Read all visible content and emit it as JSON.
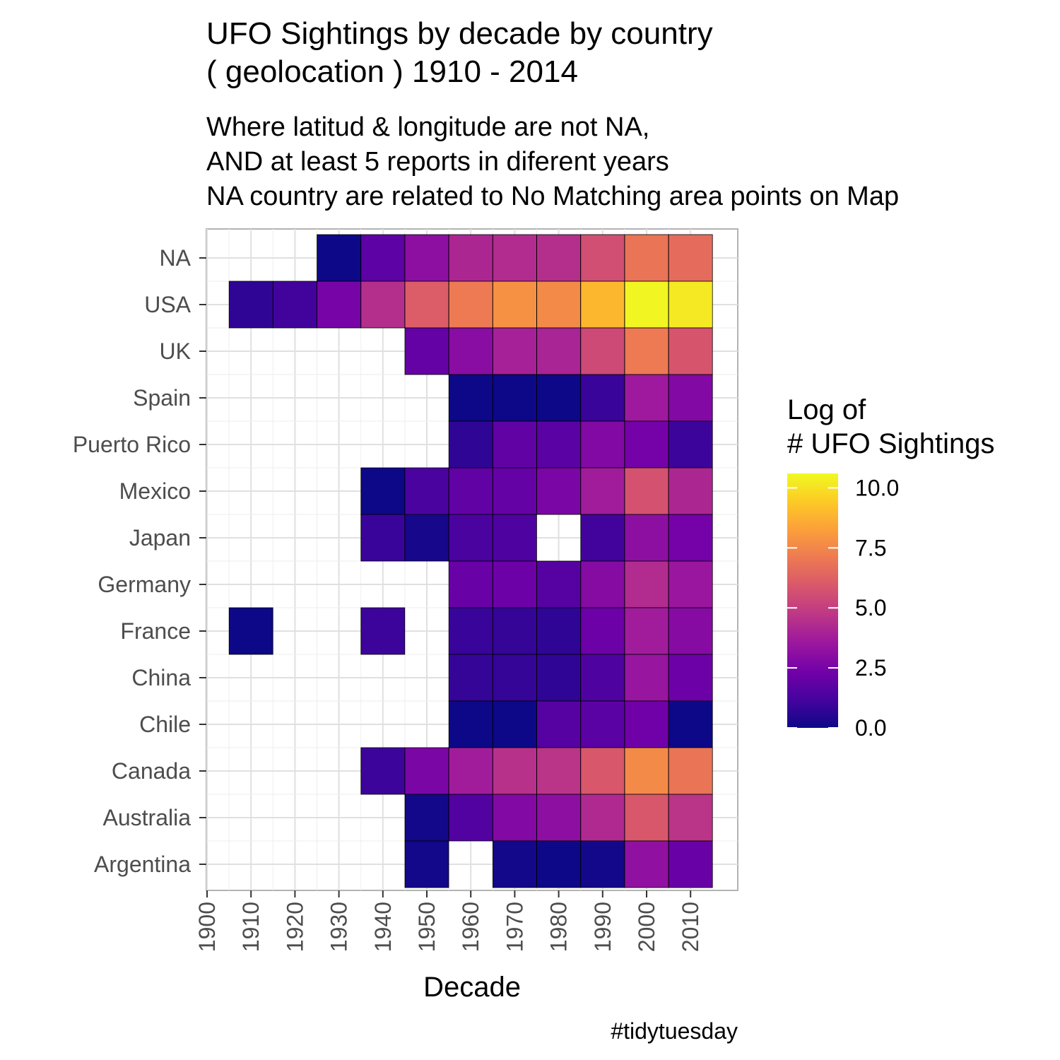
{
  "chart_data": {
    "type": "heatmap",
    "title": [
      "UFO Sightings by decade by country",
      "( geolocation ) 1910 - 2014"
    ],
    "subtitle": [
      "Where latitud & longitude are not NA,",
      "AND at least 5 reports in diferent years",
      "NA country are related to No Matching area points on Map"
    ],
    "xlabel": "Decade",
    "ylabel": "",
    "caption": "#tidytuesday",
    "x_ticks": [
      "1900",
      "1910",
      "1920",
      "1930",
      "1940",
      "1950",
      "1960",
      "1970",
      "1980",
      "1990",
      "2000",
      "2010"
    ],
    "x": [
      1910,
      1920,
      1930,
      1940,
      1950,
      1960,
      1970,
      1980,
      1990,
      2000,
      2010
    ],
    "y": [
      "NA",
      "USA",
      "UK",
      "Spain",
      "Puerto Rico",
      "Mexico",
      "Japan",
      "Germany",
      "France",
      "China",
      "Chile",
      "Canada",
      "Australia",
      "Argentina"
    ],
    "values": [
      [
        null,
        null,
        0.0,
        1.8,
        3.1,
        4.1,
        4.3,
        4.4,
        5.6,
        6.9,
        6.6
      ],
      [
        0.7,
        1.1,
        2.5,
        4.4,
        6.1,
        7.1,
        7.8,
        7.6,
        8.9,
        10.5,
        10.2
      ],
      [
        null,
        null,
        null,
        null,
        2.0,
        3.0,
        3.9,
        4.0,
        5.4,
        7.1,
        5.8
      ],
      [
        null,
        null,
        null,
        null,
        null,
        0.0,
        0.0,
        0.0,
        0.9,
        3.6,
        2.8
      ],
      [
        null,
        null,
        null,
        null,
        null,
        0.7,
        1.9,
        1.7,
        2.8,
        2.4,
        1.0
      ],
      [
        null,
        null,
        null,
        0.0,
        1.3,
        1.9,
        2.0,
        2.6,
        3.7,
        5.7,
        4.1
      ],
      [
        null,
        null,
        null,
        0.9,
        0.2,
        1.3,
        1.4,
        null,
        1.1,
        3.1,
        2.4
      ],
      [
        null,
        null,
        null,
        null,
        null,
        2.1,
        2.2,
        1.6,
        2.9,
        4.3,
        3.5
      ],
      [
        0.0,
        null,
        null,
        1.0,
        null,
        0.9,
        0.8,
        0.7,
        2.2,
        3.7,
        2.9
      ],
      [
        null,
        null,
        null,
        null,
        null,
        0.8,
        0.8,
        0.7,
        1.4,
        3.4,
        2.2
      ],
      [
        null,
        null,
        null,
        null,
        null,
        0.0,
        0.0,
        1.6,
        1.7,
        2.3,
        0.0
      ],
      [
        null,
        null,
        null,
        1.0,
        2.6,
        3.7,
        4.5,
        4.6,
        5.9,
        7.6,
        6.9
      ],
      [
        null,
        null,
        null,
        null,
        0.1,
        1.5,
        2.8,
        3.1,
        4.2,
        5.9,
        4.6
      ],
      [
        null,
        null,
        null,
        null,
        0.1,
        null,
        0.1,
        0.0,
        0.1,
        3.2,
        2.1
      ]
    ],
    "legend": {
      "title": [
        "Log of",
        "# UFO Sightings"
      ],
      "ticks": [
        "0.0",
        "2.5",
        "5.0",
        "7.5",
        "10.0"
      ],
      "tick_values": [
        0,
        2.5,
        5,
        7.5,
        10
      ],
      "range": [
        0,
        10.6
      ],
      "palette": "plasma",
      "colors": [
        "#0d0887",
        "#46039f",
        "#7201a8",
        "#9c179e",
        "#bd3786",
        "#d8576b",
        "#ed7953",
        "#fb9f3a",
        "#fdca26",
        "#f0f921"
      ]
    },
    "grid": true,
    "legend_position": "right"
  }
}
